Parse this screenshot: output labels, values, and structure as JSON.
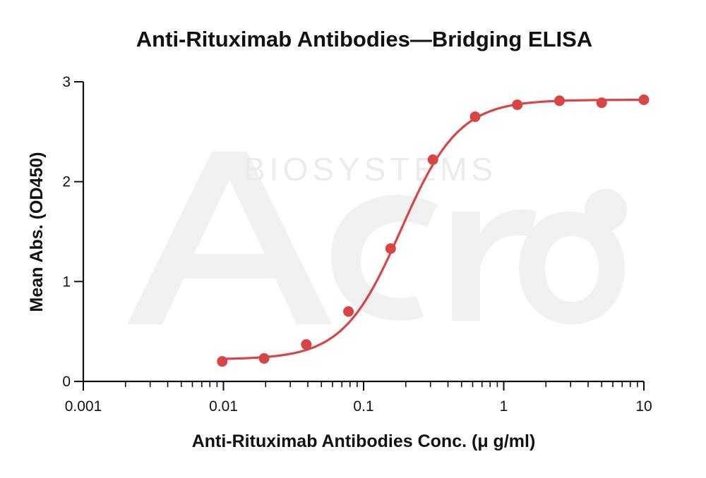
{
  "chart_data": {
    "type": "scatter",
    "title": "Anti-Rituximab Antibodies—Bridging ELISA",
    "xlabel": "Anti-Rituximab Antibodies Conc. (μ g/ml)",
    "ylabel": "Mean Abs. (OD450)",
    "x_scale": "log",
    "xlim": [
      0.001,
      10
    ],
    "ylim": [
      0,
      3
    ],
    "x_ticks": [
      0.001,
      0.01,
      0.1,
      1,
      10
    ],
    "x_tick_labels": [
      "0.001",
      "0.01",
      "0.1",
      "1",
      "10"
    ],
    "y_ticks": [
      0,
      1,
      2,
      3
    ],
    "y_tick_labels": [
      "0",
      "1",
      "2",
      "3"
    ],
    "grid": false,
    "legend": "none",
    "series": [
      {
        "color": "#d94444",
        "fit": "4PL",
        "fit_params": {
          "bottom": 0.22,
          "top": 2.82,
          "ec50": 0.185,
          "hill": 2.1
        },
        "x": [
          0.0098,
          0.0195,
          0.039,
          0.078,
          0.156,
          0.3125,
          0.625,
          1.25,
          2.5,
          5,
          10
        ],
        "y": [
          0.2,
          0.23,
          0.37,
          0.7,
          1.33,
          2.22,
          2.65,
          2.77,
          2.81,
          2.79,
          2.82
        ]
      }
    ],
    "watermark": {
      "text": "BIOSYSTEMS",
      "logo": "Acro"
    }
  }
}
